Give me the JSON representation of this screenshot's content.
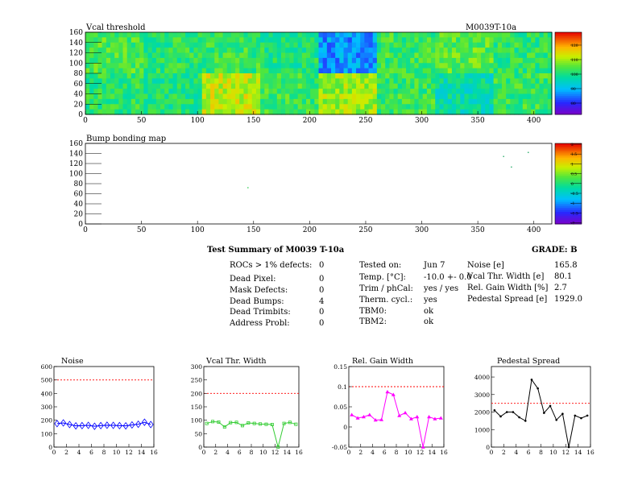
{
  "panels": {
    "vcal_threshold": {
      "title": "Vcal threshold",
      "module_label": "M0039T-10a",
      "colorbar_ticks": [
        "120",
        "110",
        "100",
        "90",
        "80"
      ]
    },
    "bump_bonding": {
      "title": "Bump bonding map",
      "colorbar_ticks": [
        "2",
        "1.5",
        "1",
        "0.5",
        "0",
        "-0.5",
        "-1",
        "-1.5",
        "-2"
      ]
    }
  },
  "summary": {
    "title": "Test Summary of M0039   T-10a",
    "grade": "GRADE:  B",
    "defects": [
      {
        "label": "ROCs > 1% defects:",
        "value": "0"
      },
      {
        "label": "Dead Pixel:",
        "value": "0"
      },
      {
        "label": "Mask Defects:",
        "value": "0"
      },
      {
        "label": "Dead Bumps:",
        "value": "4"
      },
      {
        "label": "Dead Trimbits:",
        "value": "0"
      },
      {
        "label": "Address Probl:",
        "value": "0"
      }
    ],
    "conditions": [
      {
        "label": "Tested on:",
        "value": "Jun 7"
      },
      {
        "label": "Temp. [°C]:",
        "value": "-10.0 +- 0.0"
      },
      {
        "label": "Trim / phCal:",
        "value": "yes / yes"
      },
      {
        "label": "Therm. cycl.:",
        "value": "yes"
      },
      {
        "label": "TBM0:",
        "value": "ok"
      },
      {
        "label": "TBM2:",
        "value": "ok"
      }
    ],
    "metrics": [
      {
        "label": "Noise [e]",
        "value": "165.8"
      },
      {
        "label": "Vcal Thr. Width [e]",
        "value": "80.1"
      },
      {
        "label": "Rel. Gain Width [%]",
        "value": "2.7"
      },
      {
        "label": "Pedestal Spread [e]",
        "value": "1929.0"
      }
    ]
  },
  "chart_data": [
    {
      "type": "heatmap",
      "title": "Vcal threshold",
      "xlim": [
        0,
        416
      ],
      "ylim": [
        0,
        160
      ],
      "xticks": [
        0,
        50,
        100,
        150,
        200,
        250,
        300,
        350,
        400
      ],
      "yticks": [
        0,
        20,
        40,
        60,
        80,
        100,
        120,
        140,
        160
      ],
      "zlim": [
        75,
        125
      ],
      "roc_mean_values": {
        "top_row": [
          103,
          101,
          102,
          100,
          88,
          102,
          104,
          101
        ],
        "bottom_row": [
          101,
          100,
          110,
          102,
          108,
          102,
          97,
          102
        ]
      },
      "colors": {
        "scale": "rainbow"
      }
    },
    {
      "type": "heatmap",
      "title": "Bump bonding map",
      "xlim": [
        0,
        416
      ],
      "ylim": [
        0,
        160
      ],
      "xticks": [
        0,
        50,
        100,
        150,
        200,
        250,
        300,
        350,
        400
      ],
      "yticks": [
        0,
        20,
        40,
        60,
        80,
        100,
        120,
        140,
        160
      ],
      "zlim": [
        -2,
        2
      ],
      "points": [
        {
          "x": 145,
          "y": 72
        },
        {
          "x": 373,
          "y": 134
        },
        {
          "x": 380,
          "y": 113
        },
        {
          "x": 395,
          "y": 142
        }
      ]
    },
    {
      "type": "line",
      "title": "Noise",
      "x": [
        0,
        1,
        2,
        3,
        4,
        5,
        6,
        7,
        8,
        9,
        10,
        11,
        12,
        13,
        14,
        15
      ],
      "y": [
        175,
        180,
        168,
        158,
        160,
        162,
        155,
        160,
        163,
        162,
        160,
        158,
        165,
        170,
        185,
        168
      ],
      "ylim": [
        0,
        600
      ],
      "xlim": [
        0,
        16
      ],
      "yticks": [
        0,
        100,
        200,
        300,
        400,
        500,
        600
      ],
      "xticks": [
        0,
        2,
        4,
        6,
        8,
        10,
        12,
        14,
        16
      ],
      "threshold": 500,
      "colors": {
        "line": "#0000ff",
        "threshold": "#ff0000"
      },
      "marker": "diamond"
    },
    {
      "type": "line",
      "title": "Vcal Thr. Width",
      "x": [
        0,
        1,
        2,
        3,
        4,
        5,
        6,
        7,
        8,
        9,
        10,
        11,
        12,
        13,
        14,
        15
      ],
      "y": [
        88,
        95,
        93,
        75,
        91,
        92,
        80,
        90,
        88,
        86,
        85,
        84,
        0,
        88,
        92,
        85
      ],
      "ylim": [
        0,
        300
      ],
      "xlim": [
        0,
        16
      ],
      "yticks": [
        0,
        50,
        100,
        150,
        200,
        250,
        300
      ],
      "xticks": [
        0,
        2,
        4,
        6,
        8,
        10,
        12,
        14,
        16
      ],
      "threshold": 200,
      "colors": {
        "line": "#33cc33",
        "threshold": "#ff0000"
      },
      "marker": "square"
    },
    {
      "type": "line",
      "title": "Rel. Gain Width",
      "x": [
        0,
        1,
        2,
        3,
        4,
        5,
        6,
        7,
        8,
        9,
        10,
        11,
        12,
        13,
        14,
        15
      ],
      "y": [
        0.03,
        0.022,
        0.025,
        0.03,
        0.017,
        0.018,
        0.087,
        0.08,
        0.028,
        0.035,
        0.02,
        0.025,
        -0.05,
        0.025,
        0.02,
        0.022
      ],
      "ylim": [
        -0.05,
        0.15
      ],
      "xlim": [
        0,
        16
      ],
      "yticks": [
        -0.05,
        0,
        0.05,
        0.1,
        0.15
      ],
      "ytick_labels": [
        "-0.05",
        "0",
        "0.05",
        "0.1",
        "0.15"
      ],
      "xticks": [
        0,
        2,
        4,
        6,
        8,
        10,
        12,
        14,
        16
      ],
      "threshold": 0.1,
      "colors": {
        "line": "#ff00ff",
        "threshold": "#ff0000"
      },
      "marker": "triangle"
    },
    {
      "type": "line",
      "title": "Pedestal Spread",
      "x": [
        0,
        1,
        2,
        3,
        4,
        5,
        6,
        7,
        8,
        9,
        10,
        11,
        12,
        13,
        14,
        15
      ],
      "y": [
        2100,
        1750,
        2000,
        2000,
        1700,
        1500,
        3850,
        3350,
        1950,
        2350,
        1550,
        1900,
        0,
        1800,
        1650,
        1800
      ],
      "ylim": [
        0,
        4600
      ],
      "xlim": [
        0,
        16
      ],
      "yticks": [
        0,
        1000,
        2000,
        3000,
        4000
      ],
      "xticks": [
        0,
        2,
        4,
        6,
        8,
        10,
        12,
        14,
        16
      ],
      "threshold": 2500,
      "colors": {
        "line": "#000000",
        "threshold": "#ff0000"
      },
      "marker": "dot"
    }
  ]
}
